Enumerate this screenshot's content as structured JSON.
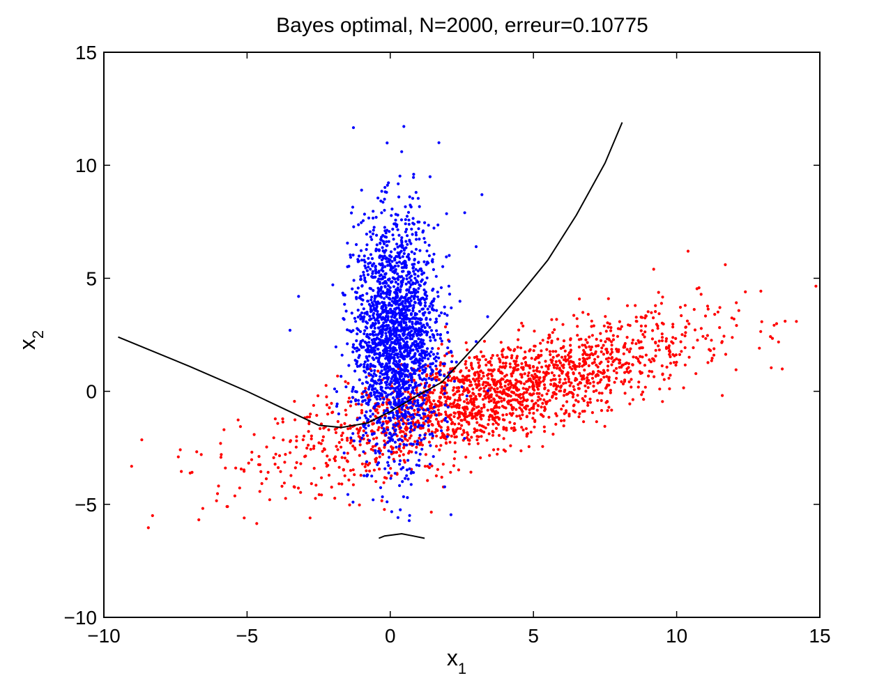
{
  "chart_data": {
    "type": "scatter",
    "title": "Bayes optimal, N=2000, erreur=0.10775",
    "xlabel": {
      "base": "x",
      "sub": "1"
    },
    "ylabel": {
      "base": "x",
      "sub": "2"
    },
    "xlim": [
      -10,
      15
    ],
    "ylim": [
      -10,
      15
    ],
    "xticks": [
      -10,
      -5,
      0,
      5,
      10,
      15
    ],
    "yticks": [
      -10,
      -5,
      0,
      5,
      10,
      15
    ],
    "xtick_labels": [
      "−10",
      "−5",
      "0",
      "5",
      "10",
      "15"
    ],
    "ytick_labels": [
      "−10",
      "−5",
      "0",
      "5",
      "10",
      "15"
    ],
    "grid": false,
    "series": [
      {
        "color": "#0000ff",
        "kind": "points",
        "sample_count": 2000,
        "distribution": {
          "mean": [
            0.2,
            2.4
          ],
          "std": [
            0.75,
            2.6
          ]
        },
        "points": [
          [
            0.4,
            10.6
          ],
          [
            1.7,
            11.0
          ],
          [
            -1.0,
            8.9
          ],
          [
            0.9,
            8.8
          ],
          [
            3.2,
            8.7
          ],
          [
            -0.2,
            8.5
          ],
          [
            0.3,
            8.6
          ],
          [
            2.6,
            7.9
          ],
          [
            3.0,
            6.4
          ],
          [
            -3.2,
            4.2
          ],
          [
            -3.5,
            2.7
          ],
          [
            3.4,
            3.3
          ],
          [
            3.0,
            2.2
          ],
          [
            -1.3,
            -4.9
          ],
          [
            0.6,
            -4.7
          ],
          [
            -0.6,
            -4.8
          ],
          [
            -1.8,
            -1.0
          ],
          [
            2.5,
            0.2
          ]
        ]
      },
      {
        "color": "#ff0000",
        "kind": "points",
        "sample_count": 2000,
        "distribution": {
          "mean": [
            3.5,
            -0.2
          ],
          "slope": 0.35,
          "std_along": 3.6,
          "std_perp": 1.1
        },
        "points": [
          [
            -8.3,
            -5.5
          ],
          [
            -7.4,
            -2.9
          ],
          [
            -6.6,
            -2.8
          ],
          [
            -5.9,
            -2.8
          ],
          [
            -5.7,
            -5.1
          ],
          [
            -5.1,
            -5.6
          ],
          [
            -2.8,
            -5.6
          ],
          [
            10.4,
            6.2
          ],
          [
            11.7,
            5.6
          ],
          [
            12.4,
            4.4
          ],
          [
            9.2,
            5.4
          ],
          [
            10.3,
            3.8
          ],
          [
            11.3,
            1.6
          ],
          [
            1.8,
            -3.8
          ],
          [
            6.6,
            1.1
          ]
        ]
      }
    ],
    "boundary": [
      {
        "color": "#000000",
        "points": [
          [
            -9.5,
            2.4
          ],
          [
            -7.0,
            1.1
          ],
          [
            -5.0,
            0.0
          ],
          [
            -3.5,
            -0.9
          ],
          [
            -2.5,
            -1.5
          ],
          [
            -1.7,
            -1.6
          ],
          [
            -0.8,
            -1.4
          ],
          [
            0.0,
            -0.9
          ],
          [
            0.8,
            -0.3
          ],
          [
            1.8,
            0.4
          ],
          [
            2.6,
            1.5
          ],
          [
            3.6,
            2.9
          ],
          [
            4.6,
            4.4
          ],
          [
            5.5,
            5.8
          ],
          [
            6.5,
            7.8
          ],
          [
            7.5,
            10.1
          ],
          [
            8.1,
            11.9
          ]
        ]
      },
      {
        "color": "#000000",
        "points": [
          [
            -0.4,
            -6.5
          ],
          [
            -0.2,
            -6.4
          ],
          [
            0.4,
            -6.3
          ],
          [
            0.8,
            -6.4
          ],
          [
            1.2,
            -6.5
          ]
        ]
      }
    ]
  }
}
